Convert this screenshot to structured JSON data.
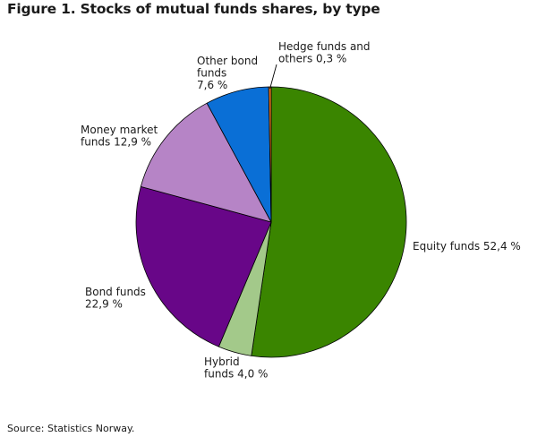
{
  "chart_data": {
    "type": "pie",
    "title": "Figure 1. Stocks of mutual funds shares, by type",
    "source": "Source: Statistics Norway.",
    "unit": "%",
    "slices": [
      {
        "label": "Equity funds 52,4 %",
        "label_lines": [
          "Equity funds 52,4 %"
        ],
        "value": 52.4,
        "color": "#3a8500"
      },
      {
        "label": "Hybrid funds 4,0 %",
        "label_lines": [
          "Hybrid",
          "funds 4,0 %"
        ],
        "value": 4.0,
        "color": "#a3c98a"
      },
      {
        "label": "Bond funds 22,9 %",
        "label_lines": [
          "Bond funds",
          "22,9 %"
        ],
        "value": 22.9,
        "color": "#680688"
      },
      {
        "label": "Money market funds 12,9 %",
        "label_lines": [
          "Money market",
          "funds 12,9 %"
        ],
        "value": 12.9,
        "color": "#b684c6"
      },
      {
        "label": "Other bond funds 7,6 %",
        "label_lines": [
          "Other bond",
          "funds",
          "7,6 %"
        ],
        "value": 7.6,
        "color": "#0a6fd6"
      },
      {
        "label": "Hedge funds and others 0,3 %",
        "label_lines": [
          "Hedge funds and",
          "others 0,3 %"
        ],
        "value": 0.3,
        "color": "#e87722"
      }
    ],
    "start_angle": "12 o'clock",
    "direction": "clockwise",
    "legend": "none"
  }
}
